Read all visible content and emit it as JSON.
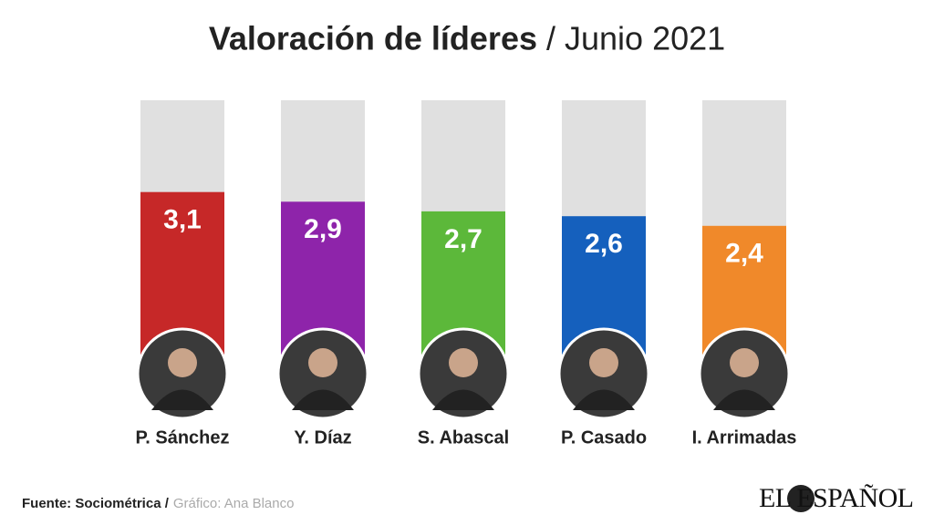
{
  "chart_data": {
    "type": "bar",
    "title": "Valoración de líderes",
    "subtitle": "/ Junio 2021",
    "categories": [
      "P. Sánchez",
      "Y. Díaz",
      "S. Abascal",
      "P. Casado",
      "I. Arrimadas"
    ],
    "values": [
      3.1,
      2.9,
      2.7,
      2.6,
      2.4
    ],
    "value_labels": [
      "3,1",
      "2,9",
      "2,7",
      "2,6",
      "2,4"
    ],
    "colors": [
      "#c62828",
      "#8e24aa",
      "#5cb83a",
      "#1560bd",
      "#f0892a"
    ],
    "ylim": [
      0,
      5
    ],
    "source": "Fuente: Sociométrica /",
    "credit": "Gráfico: Ana Blanco",
    "logo": "EL ESPAÑOL"
  }
}
